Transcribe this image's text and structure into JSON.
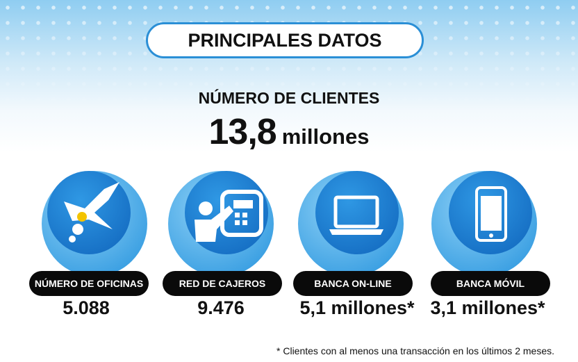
{
  "header": {
    "title": "PRINCIPALES DATOS"
  },
  "highlight": {
    "label": "NÚMERO DE CLIENTES",
    "value": "13,8",
    "unit": "millones"
  },
  "cards": [
    {
      "label": "NÚMERO DE OFICINAS",
      "value": "5.088"
    },
    {
      "label": "RED DE CAJEROS",
      "value": "9.476"
    },
    {
      "label": "BANCA ON-LINE",
      "value": "5,1 millones*"
    },
    {
      "label": "BANCA MÓVIL",
      "value": "3,1 millones*"
    }
  ],
  "footnote": "* Clientes con al menos una transacción en los últimos 2 meses."
}
